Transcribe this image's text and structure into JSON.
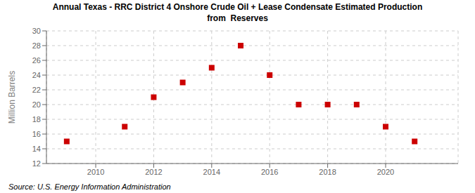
{
  "chart_data": {
    "type": "scatter",
    "title": "Annual Texas - RRC District 4 Onshore Crude Oil + Lease Condensate Estimated Production",
    "subtitle": "from  Reserves",
    "y_label": "Million Barrels",
    "annotations": [
      "Source: U.S. Energy Information Administration"
    ],
    "x": [
      2009,
      2011,
      2012,
      2013,
      2014,
      2015,
      2016,
      2017,
      2018,
      2019,
      2020,
      2021
    ],
    "values": [
      15.0,
      17.0,
      21.0,
      23.0,
      25.0,
      28.0,
      24.0,
      20.0,
      20.0,
      20.0,
      17.0,
      15.0
    ],
    "xlim": [
      2008.3,
      2022.5
    ],
    "ylim": [
      12,
      30
    ],
    "xticks": [
      2010,
      2012,
      2014,
      2016,
      2018,
      2020
    ],
    "yticks": [
      12,
      14,
      16,
      18,
      20,
      22,
      24,
      26,
      28,
      30
    ],
    "color": "#cc0000",
    "marker": "square",
    "grid": true
  }
}
